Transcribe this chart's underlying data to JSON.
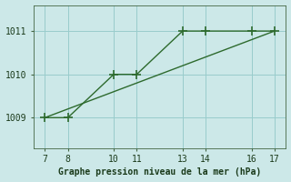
{
  "line1_x": [
    7,
    8,
    10,
    11,
    13,
    14,
    16,
    17
  ],
  "line1_y": [
    1009,
    1009,
    1010,
    1010,
    1011,
    1011,
    1011,
    1011
  ],
  "line2_x": [
    7,
    17
  ],
  "line2_y": [
    1009,
    1011
  ],
  "line_color": "#2d6a2d",
  "bg_color": "#cce8e8",
  "plot_bg": "#cce8e8",
  "grid_color": "#99cccc",
  "xlabel": "Graphe pression niveau de la mer (hPa)",
  "xticks": [
    7,
    8,
    10,
    11,
    13,
    14,
    16,
    17
  ],
  "yticks": [
    1009,
    1010,
    1011
  ],
  "xlim": [
    6.5,
    17.5
  ],
  "ylim": [
    1008.3,
    1011.6
  ],
  "marker": "+",
  "markersize": 7,
  "linewidth": 1.0
}
